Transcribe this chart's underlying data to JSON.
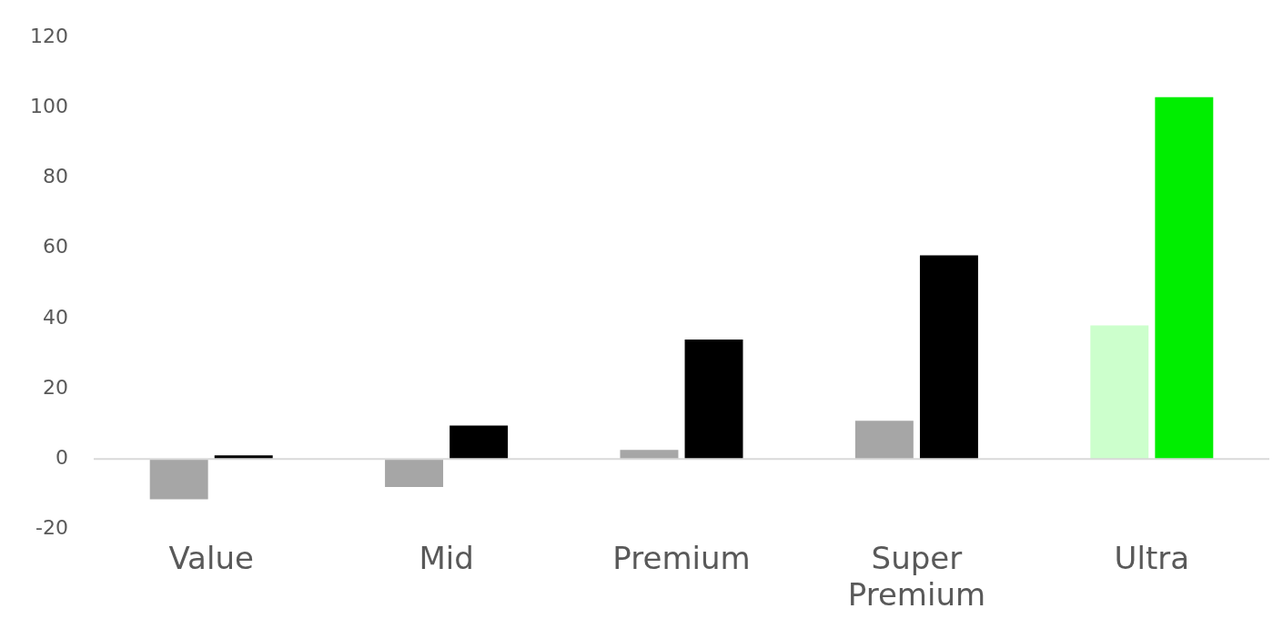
{
  "chart_data": {
    "type": "bar",
    "categories": [
      "Value",
      "Mid",
      "Premium",
      "Super Premium",
      "Ultra"
    ],
    "series": [
      {
        "colors": [
          "#a6a6a6",
          "#a6a6a6",
          "#a6a6a6",
          "#a6a6a6",
          "#ccffcc"
        ],
        "values": [
          -11.5,
          -8,
          2.6,
          10.9,
          38
        ]
      },
      {
        "colors": [
          "#000000",
          "#000000",
          "#000000",
          "#000000",
          "#00ee00"
        ],
        "values": [
          1,
          9.5,
          34,
          58,
          103
        ]
      }
    ],
    "ylim": [
      -20,
      120
    ],
    "yticks": [
      -20,
      0,
      20,
      40,
      60,
      80,
      100,
      120
    ],
    "grid": false,
    "legend": false
  }
}
